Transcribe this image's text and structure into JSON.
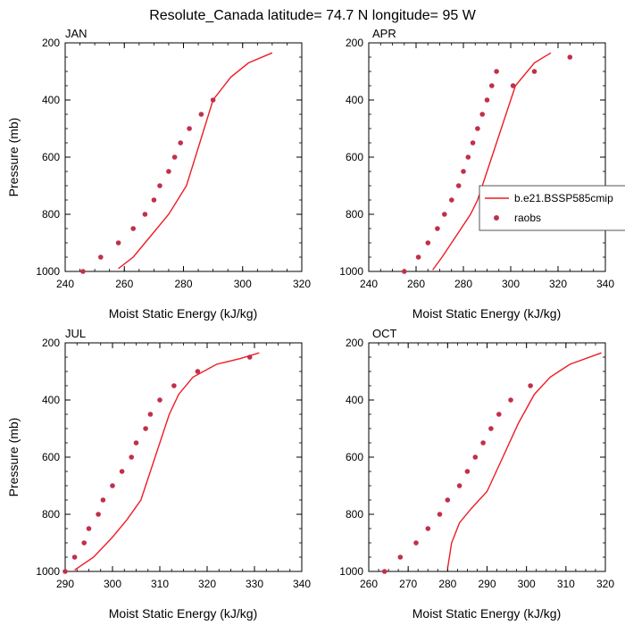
{
  "title": "Resolute_Canada  latitude= 74.7 N longitude= 95 W",
  "colors": {
    "model": "#ee1c24",
    "obs": "#c0304a"
  },
  "legend": {
    "model_label": "b.e21.BSSP585cmip",
    "obs_label": "raobs"
  },
  "chart_data": [
    {
      "type": "scatter",
      "panel": "JAN",
      "xlabel": "Moist Static Energy (kJ/kg)",
      "ylabel": "Pressure (mb)",
      "xlim": [
        240,
        320
      ],
      "ylim": [
        1000,
        200
      ],
      "y_inverted": true,
      "xticks": [
        240,
        260,
        280,
        300,
        320
      ],
      "yticks": [
        200,
        400,
        600,
        800,
        1000
      ],
      "series": [
        {
          "name": "b.e21.BSSP585cmip",
          "kind": "line",
          "x": [
            258,
            263,
            267,
            271,
            275,
            278,
            281,
            284,
            287,
            290,
            296,
            302,
            310
          ],
          "y": [
            990,
            950,
            900,
            850,
            800,
            750,
            700,
            600,
            500,
            400,
            320,
            270,
            235
          ]
        },
        {
          "name": "raobs",
          "kind": "points",
          "x": [
            246,
            252,
            258,
            263,
            267,
            270,
            272,
            275,
            277,
            279,
            282,
            286,
            290
          ],
          "y": [
            1000,
            950,
            900,
            850,
            800,
            750,
            700,
            650,
            600,
            550,
            500,
            450,
            400
          ]
        }
      ]
    },
    {
      "type": "scatter",
      "panel": "APR",
      "xlabel": "Moist Static Energy (kJ/kg)",
      "ylabel": "",
      "xlim": [
        240,
        340
      ],
      "ylim": [
        1000,
        200
      ],
      "y_inverted": true,
      "xticks": [
        240,
        260,
        280,
        300,
        320,
        340
      ],
      "yticks": [
        200,
        400,
        600,
        800,
        1000
      ],
      "series": [
        {
          "name": "b.e21.BSSP585cmip",
          "kind": "line",
          "x": [
            267,
            271,
            275,
            279,
            283,
            286,
            290,
            294,
            298,
            302,
            310,
            317
          ],
          "y": [
            995,
            950,
            900,
            850,
            800,
            750,
            650,
            550,
            450,
            350,
            270,
            235
          ]
        },
        {
          "name": "raobs",
          "kind": "points",
          "x": [
            255,
            261,
            265,
            269,
            272,
            275,
            278,
            280,
            282,
            284,
            286,
            288,
            290,
            292,
            294,
            301,
            310,
            325
          ],
          "y": [
            1000,
            950,
            900,
            850,
            800,
            750,
            700,
            650,
            600,
            550,
            500,
            450,
            400,
            350,
            300,
            350,
            300,
            250
          ]
        }
      ]
    },
    {
      "type": "scatter",
      "panel": "JUL",
      "xlabel": "Moist Static Energy (kJ/kg)",
      "ylabel": "Pressure (mb)",
      "xlim": [
        290,
        340
      ],
      "ylim": [
        1000,
        200
      ],
      "y_inverted": true,
      "xticks": [
        290,
        300,
        310,
        320,
        330,
        340
      ],
      "yticks": [
        200,
        400,
        600,
        800,
        1000
      ],
      "series": [
        {
          "name": "b.e21.BSSP585cmip",
          "kind": "line",
          "x": [
            292,
            296,
            300,
            303,
            306,
            308,
            310,
            312,
            314,
            317,
            322,
            327,
            331
          ],
          "y": [
            995,
            950,
            880,
            820,
            750,
            650,
            550,
            450,
            380,
            320,
            275,
            255,
            235
          ]
        },
        {
          "name": "raobs",
          "kind": "points",
          "x": [
            290,
            292,
            294,
            295,
            297,
            298,
            300,
            302,
            304,
            305,
            307,
            308,
            310,
            313,
            318,
            329
          ],
          "y": [
            1000,
            950,
            900,
            850,
            800,
            750,
            700,
            650,
            600,
            550,
            500,
            450,
            400,
            350,
            300,
            250
          ]
        }
      ]
    },
    {
      "type": "scatter",
      "panel": "OCT",
      "xlabel": "Moist Static Energy (kJ/kg)",
      "ylabel": "",
      "xlim": [
        260,
        320
      ],
      "ylim": [
        1000,
        200
      ],
      "y_inverted": true,
      "xticks": [
        260,
        270,
        280,
        290,
        300,
        310,
        320
      ],
      "yticks": [
        200,
        400,
        600,
        800,
        1000
      ],
      "series": [
        {
          "name": "b.e21.BSSP585cmip",
          "kind": "line",
          "x": [
            280,
            281,
            283,
            286,
            290,
            294,
            298,
            302,
            306,
            311,
            319
          ],
          "y": [
            990,
            900,
            830,
            780,
            720,
            600,
            480,
            380,
            320,
            275,
            235
          ]
        },
        {
          "name": "raobs",
          "kind": "points",
          "x": [
            264,
            268,
            272,
            275,
            278,
            280,
            283,
            285,
            287,
            289,
            291,
            293,
            296,
            301
          ],
          "y": [
            1000,
            950,
            900,
            850,
            800,
            750,
            700,
            650,
            600,
            550,
            500,
            450,
            400,
            350
          ]
        }
      ]
    }
  ]
}
